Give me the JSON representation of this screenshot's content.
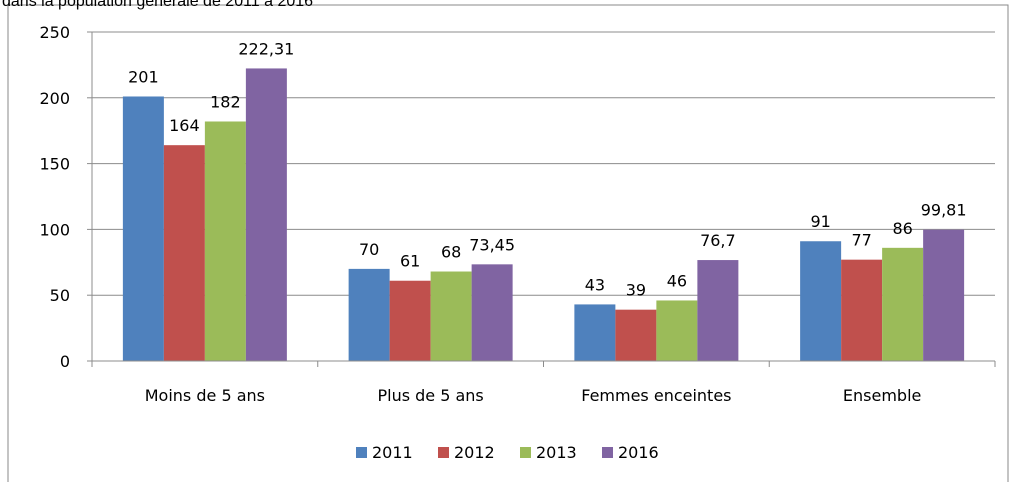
{
  "chart_data": {
    "type": "bar",
    "title": "dans la population générale de 2011 à 2016",
    "categories": [
      "Moins de 5 ans",
      "Plus de 5 ans",
      "Femmes enceintes",
      "Ensemble"
    ],
    "series": [
      {
        "name": "2011",
        "color": "#4f81bd",
        "values": [
          201,
          70,
          43,
          91
        ]
      },
      {
        "name": "2012",
        "color": "#c0504d",
        "values": [
          164,
          61,
          39,
          77
        ]
      },
      {
        "name": "2013",
        "color": "#9bbb59",
        "values": [
          182,
          68,
          46,
          86
        ]
      },
      {
        "name": "2016",
        "color": "#8064a2",
        "values": [
          222.31,
          73.45,
          76.7,
          99.81
        ],
        "value_labels": [
          "222,31",
          "73,45",
          "76,7",
          "99,81"
        ]
      }
    ],
    "ylim": [
      0,
      250
    ],
    "yticks": [
      0,
      50,
      100,
      150,
      200,
      250
    ],
    "grid": true,
    "legend": "bottom"
  }
}
